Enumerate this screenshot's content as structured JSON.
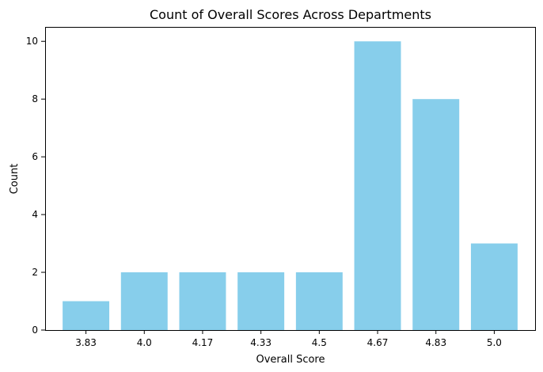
{
  "chart_data": {
    "type": "bar",
    "title": "Count of Overall Scores Across Departments",
    "xlabel": "Overall Score",
    "ylabel": "Count",
    "categories": [
      "3.83",
      "4.0",
      "4.17",
      "4.33",
      "4.5",
      "4.67",
      "4.83",
      "5.0"
    ],
    "values": [
      1,
      2,
      2,
      2,
      2,
      10,
      8,
      3
    ],
    "ylim": [
      0,
      10.5
    ],
    "yticks": [
      "0",
      "2",
      "4",
      "6",
      "8",
      "10"
    ],
    "bar_color": "#87ceeb",
    "grid": false,
    "legend": "none"
  }
}
